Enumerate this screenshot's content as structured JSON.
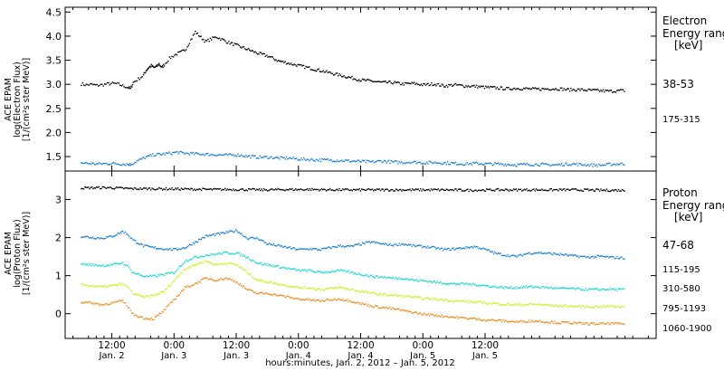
{
  "chart_data": [
    {
      "type": "scatter",
      "panel": "electron",
      "ylabel_lines": [
        "ACE EPAM",
        "log(Electron Flux)",
        "[1/(cm²s ster MeV)]"
      ],
      "ylim": [
        1.2,
        4.6
      ],
      "yticks": [
        1.5,
        2.0,
        2.5,
        3.0,
        3.5,
        4.0,
        4.5
      ],
      "legend_title_lines": [
        "Electron",
        "Energy range",
        "[keV]"
      ],
      "series": [
        {
          "name": "38-53",
          "color": "#000000",
          "x": [
            0,
            2,
            4,
            6,
            8,
            10,
            12,
            14,
            16,
            18,
            19,
            20,
            22,
            24,
            25,
            26,
            27,
            28,
            29,
            30,
            31,
            32,
            34,
            36,
            40,
            44,
            48,
            52,
            56,
            60,
            64,
            68,
            72,
            76,
            80,
            84,
            88,
            92,
            96,
            100,
            104,
            108,
            112,
            116,
            120,
            124,
            128,
            132,
            136,
            140,
            144,
            148,
            152,
            156,
            160,
            164,
            168,
            172,
            176,
            180,
            184,
            188,
            192,
            196,
            200,
            204,
            208,
            210
          ],
          "y": [
            3.02,
            3.0,
            3.01,
            2.99,
            3.0,
            3.02,
            3.03,
            3.02,
            2.98,
            2.95,
            2.92,
            3.05,
            3.12,
            3.2,
            3.3,
            3.36,
            3.4,
            3.36,
            3.38,
            3.44,
            3.36,
            3.42,
            3.55,
            3.62,
            3.72,
            4.1,
            3.9,
            4.0,
            3.9,
            3.82,
            3.74,
            3.66,
            3.6,
            3.5,
            3.45,
            3.4,
            3.35,
            3.3,
            3.25,
            3.2,
            3.15,
            3.1,
            3.08,
            3.05,
            3.05,
            3.02,
            3.03,
            3.0,
            3.02,
            2.98,
            3.0,
            2.98,
            2.97,
            2.95,
            2.94,
            2.92,
            2.93,
            2.92,
            2.91,
            2.92,
            2.92,
            2.9,
            2.9,
            2.89,
            2.88,
            2.87,
            2.88,
            2.88
          ]
        },
        {
          "name": "175-315",
          "color": "#1a7fd6",
          "x": [
            0,
            6,
            12,
            18,
            19,
            22,
            25,
            28,
            31,
            34,
            37,
            40,
            44,
            48,
            52,
            56,
            60,
            64,
            68,
            72,
            76,
            80,
            84,
            88,
            92,
            96,
            100,
            104,
            108,
            112,
            116,
            120,
            124,
            128,
            132,
            136,
            140,
            144,
            148,
            152,
            156,
            160,
            164,
            168,
            172,
            176,
            180,
            184,
            188,
            192,
            196,
            200,
            204,
            208,
            210
          ],
          "y": [
            1.38,
            1.36,
            1.37,
            1.35,
            1.35,
            1.43,
            1.5,
            1.55,
            1.56,
            1.58,
            1.6,
            1.58,
            1.57,
            1.56,
            1.55,
            1.54,
            1.55,
            1.52,
            1.5,
            1.5,
            1.48,
            1.48,
            1.46,
            1.45,
            1.44,
            1.44,
            1.43,
            1.42,
            1.41,
            1.4,
            1.42,
            1.4,
            1.39,
            1.4,
            1.38,
            1.39,
            1.38,
            1.37,
            1.36,
            1.37,
            1.36,
            1.36,
            1.35,
            1.34,
            1.35,
            1.35,
            1.34,
            1.34,
            1.36,
            1.35,
            1.34,
            1.33,
            1.35,
            1.36,
            1.36
          ]
        }
      ]
    },
    {
      "type": "scatter",
      "panel": "proton",
      "ylabel_lines": [
        "ACE EPAM",
        "log(Proton Flux)",
        "[1/(cm²s ster MeV)]"
      ],
      "ylim": [
        -0.65,
        3.75
      ],
      "yticks": [
        0,
        1,
        2,
        3
      ],
      "legend_title_lines": [
        "Proton",
        "Energy range",
        "[keV]"
      ],
      "series": [
        {
          "name": "47-68",
          "color": "#000000",
          "x": [
            0,
            10,
            20,
            30,
            40,
            50,
            60,
            70,
            80,
            90,
            100,
            110,
            120,
            130,
            140,
            150,
            160,
            170,
            180,
            190,
            200,
            210
          ],
          "y": [
            3.32,
            3.33,
            3.3,
            3.3,
            3.29,
            3.28,
            3.28,
            3.27,
            3.28,
            3.28,
            3.27,
            3.27,
            3.27,
            3.27,
            3.27,
            3.26,
            3.27,
            3.27,
            3.27,
            3.27,
            3.26,
            3.26
          ]
        },
        {
          "name": "115-195",
          "color": "#1a7fd6",
          "x": [
            0,
            4,
            8,
            12,
            16,
            18,
            20,
            24,
            28,
            32,
            36,
            40,
            44,
            48,
            52,
            56,
            60,
            64,
            68,
            72,
            76,
            80,
            84,
            88,
            92,
            96,
            100,
            104,
            108,
            112,
            116,
            120,
            124,
            128,
            132,
            136,
            140,
            144,
            148,
            152,
            156,
            160,
            164,
            168,
            172,
            176,
            180,
            184,
            188,
            192,
            196,
            200,
            204,
            208,
            210
          ],
          "y": [
            2.05,
            2.02,
            2.0,
            2.05,
            2.18,
            2.1,
            1.95,
            1.8,
            1.75,
            1.72,
            1.7,
            1.75,
            1.9,
            2.05,
            2.1,
            2.15,
            2.2,
            2.0,
            2.0,
            1.85,
            1.8,
            1.75,
            1.7,
            1.72,
            1.7,
            1.75,
            1.8,
            1.78,
            1.85,
            1.9,
            1.85,
            1.82,
            1.85,
            1.8,
            1.78,
            1.75,
            1.7,
            1.72,
            1.75,
            1.78,
            1.7,
            1.6,
            1.55,
            1.52,
            1.6,
            1.62,
            1.6,
            1.58,
            1.55,
            1.52,
            1.5,
            1.52,
            1.5,
            1.48,
            1.48
          ]
        },
        {
          "name": "310-580",
          "color": "#1ad6d6",
          "x": [
            0,
            4,
            8,
            12,
            16,
            18,
            20,
            24,
            28,
            32,
            36,
            40,
            44,
            48,
            52,
            56,
            60,
            64,
            68,
            72,
            76,
            80,
            84,
            88,
            92,
            96,
            100,
            104,
            108,
            112,
            116,
            120,
            124,
            128,
            132,
            136,
            140,
            144,
            148,
            152,
            156,
            160,
            164,
            168,
            172,
            176,
            180,
            184,
            188,
            192,
            196,
            200,
            204,
            208,
            210
          ],
          "y": [
            1.32,
            1.3,
            1.28,
            1.3,
            1.35,
            1.25,
            1.1,
            1.0,
            1.0,
            1.05,
            1.1,
            1.4,
            1.5,
            1.55,
            1.58,
            1.62,
            1.6,
            1.5,
            1.35,
            1.3,
            1.25,
            1.2,
            1.15,
            1.15,
            1.1,
            1.12,
            1.15,
            1.1,
            1.05,
            1.0,
            0.98,
            0.95,
            0.95,
            0.9,
            0.88,
            0.85,
            0.82,
            0.8,
            0.8,
            0.78,
            0.75,
            0.72,
            0.7,
            0.7,
            0.72,
            0.72,
            0.7,
            0.68,
            0.68,
            0.66,
            0.65,
            0.65,
            0.66,
            0.65,
            0.65
          ]
        },
        {
          "name": "795-1193",
          "color": "#ccee22",
          "x": [
            0,
            4,
            8,
            12,
            16,
            18,
            20,
            24,
            28,
            32,
            36,
            40,
            44,
            48,
            52,
            56,
            60,
            64,
            68,
            72,
            76,
            80,
            84,
            88,
            92,
            96,
            100,
            104,
            108,
            112,
            116,
            120,
            124,
            128,
            132,
            136,
            140,
            144,
            148,
            152,
            156,
            160,
            164,
            168,
            172,
            176,
            180,
            184,
            188,
            192,
            196,
            200,
            204,
            208,
            210
          ],
          "y": [
            0.78,
            0.75,
            0.72,
            0.75,
            0.8,
            0.7,
            0.55,
            0.45,
            0.5,
            0.6,
            0.9,
            1.2,
            1.3,
            1.4,
            1.3,
            1.35,
            1.3,
            1.1,
            0.9,
            0.85,
            0.8,
            0.75,
            0.7,
            0.7,
            0.65,
            0.68,
            0.7,
            0.65,
            0.6,
            0.55,
            0.52,
            0.5,
            0.48,
            0.45,
            0.42,
            0.4,
            0.38,
            0.35,
            0.34,
            0.32,
            0.3,
            0.28,
            0.26,
            0.25,
            0.26,
            0.26,
            0.24,
            0.22,
            0.22,
            0.2,
            0.2,
            0.2,
            0.21,
            0.2,
            0.2
          ]
        },
        {
          "name": "1060-1900",
          "color": "#ee8a1a",
          "x": [
            0,
            4,
            8,
            12,
            16,
            18,
            20,
            24,
            28,
            32,
            36,
            40,
            44,
            48,
            52,
            56,
            60,
            64,
            68,
            72,
            76,
            80,
            84,
            88,
            92,
            96,
            100,
            104,
            108,
            112,
            116,
            120,
            124,
            128,
            132,
            136,
            140,
            144,
            148,
            152,
            156,
            160,
            164,
            168,
            172,
            176,
            180,
            184,
            188,
            192,
            196,
            200,
            204,
            208,
            210
          ],
          "y": [
            0.32,
            0.3,
            0.25,
            0.3,
            0.35,
            0.2,
            0.0,
            -0.1,
            -0.12,
            0.1,
            0.4,
            0.7,
            0.8,
            0.95,
            0.9,
            0.95,
            0.85,
            0.65,
            0.55,
            0.55,
            0.5,
            0.45,
            0.4,
            0.38,
            0.35,
            0.38,
            0.4,
            0.35,
            0.28,
            0.22,
            0.18,
            0.15,
            0.1,
            0.05,
            0.0,
            -0.02,
            -0.05,
            -0.08,
            -0.1,
            -0.12,
            -0.15,
            -0.16,
            -0.18,
            -0.2,
            -0.18,
            -0.18,
            -0.2,
            -0.22,
            -0.22,
            -0.24,
            -0.25,
            -0.25,
            -0.24,
            -0.25,
            -0.25
          ]
        }
      ]
    }
  ],
  "time_axis": {
    "xlim": [
      -6,
      222
    ],
    "ticks": [
      {
        "x": 12,
        "top": "12:00",
        "bottom": "Jan. 2"
      },
      {
        "x": 36,
        "top": "0:00",
        "bottom": "Jan. 3"
      },
      {
        "x": 60,
        "top": "12:00",
        "bottom": "Jan. 3"
      },
      {
        "x": 84,
        "top": "0:00",
        "bottom": "Jan. 4"
      },
      {
        "x": 108,
        "top": "12:00",
        "bottom": "Jan. 4"
      },
      {
        "x": 132,
        "top": "0:00",
        "bottom": "Jan. 5"
      },
      {
        "x": 156,
        "top": "12:00",
        "bottom": "Jan. 5"
      }
    ],
    "xlabel": "hours:minutes, Jan.  2, 2012 – Jan.  5, 2012"
  }
}
